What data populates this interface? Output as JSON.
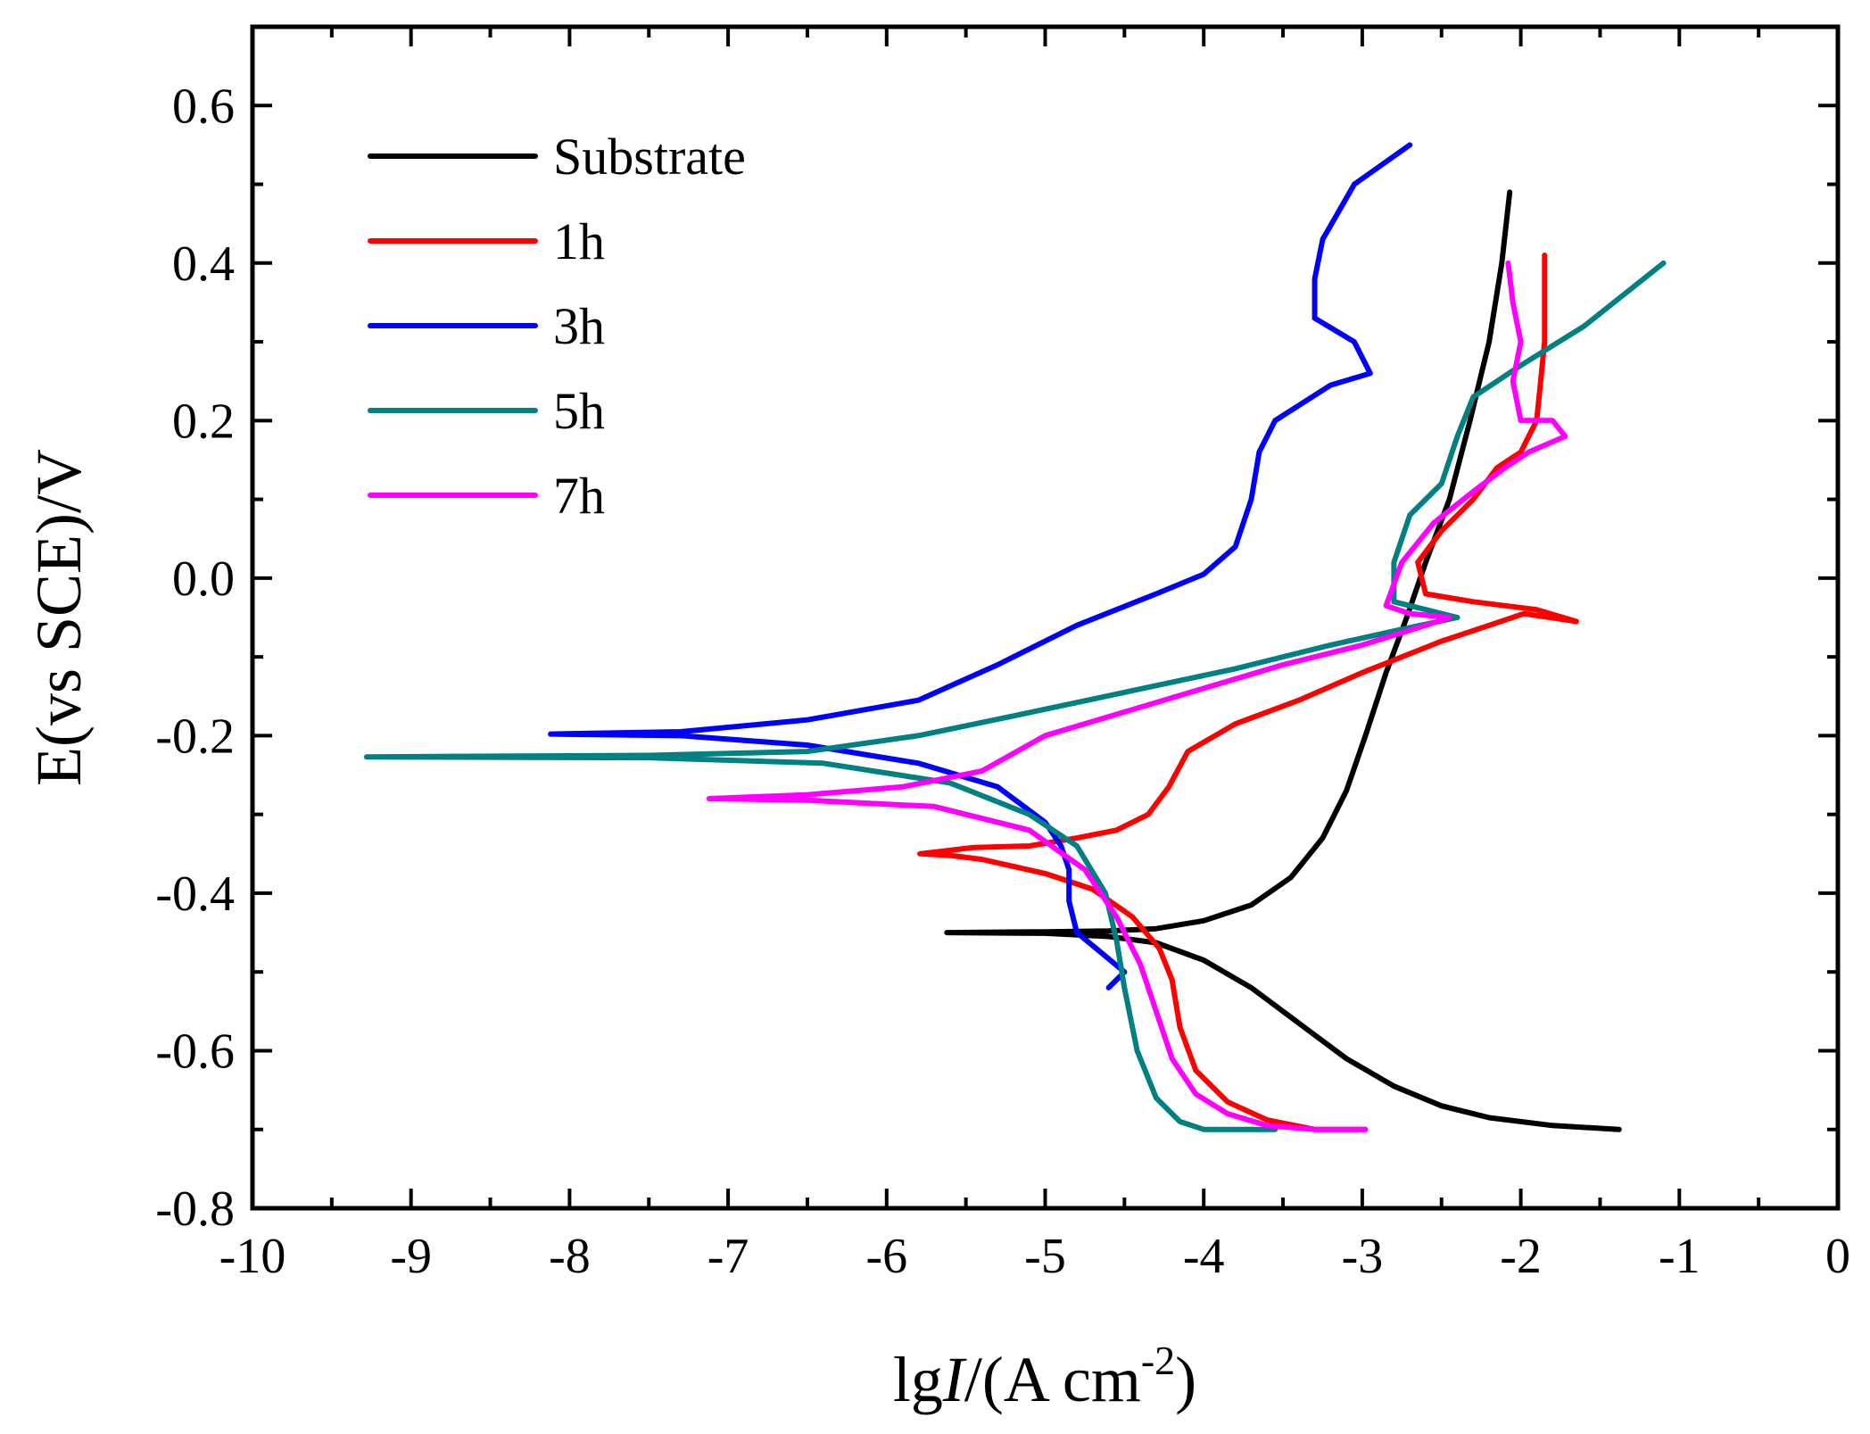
{
  "chart_data": {
    "type": "line",
    "title": "",
    "xlabel": "lgI/(A cm-2)",
    "ylabel": "E(vs SCE)/V",
    "xlabel_parts": {
      "prefix": "lg",
      "italic": "I",
      "mid": "/(A cm",
      "sup": "-2",
      "suffix": ")"
    },
    "xlim": [
      -10,
      0
    ],
    "ylim": [
      -0.8,
      0.7
    ],
    "xticks": [
      -10,
      -9,
      -8,
      -7,
      -6,
      -5,
      -4,
      -3,
      -2,
      -1,
      0
    ],
    "xtick_labels": [
      "-10",
      "-9",
      "-8",
      "-7",
      "-6",
      "-5",
      "-4",
      "-3",
      "-2",
      "-1",
      "0"
    ],
    "yticks": [
      -0.8,
      -0.6,
      -0.4,
      -0.2,
      0.0,
      0.2,
      0.4,
      0.6
    ],
    "ytick_labels": [
      "-0.8",
      "-0.6",
      "-0.4",
      "-0.2",
      "0.0",
      "0.2",
      "0.4",
      "0.6"
    ],
    "grid": false,
    "legend_position": "top-left",
    "series": [
      {
        "name": "Substrate",
        "color": "#000000",
        "points": [
          [
            -1.38,
            -0.7
          ],
          [
            -1.8,
            -0.695
          ],
          [
            -2.2,
            -0.685
          ],
          [
            -2.5,
            -0.67
          ],
          [
            -2.8,
            -0.645
          ],
          [
            -3.1,
            -0.61
          ],
          [
            -3.4,
            -0.565
          ],
          [
            -3.7,
            -0.52
          ],
          [
            -4.0,
            -0.485
          ],
          [
            -4.3,
            -0.463
          ],
          [
            -4.6,
            -0.455
          ],
          [
            -5.0,
            -0.451
          ],
          [
            -5.62,
            -0.45
          ],
          [
            -5.0,
            -0.449
          ],
          [
            -4.6,
            -0.448
          ],
          [
            -4.3,
            -0.445
          ],
          [
            -4.0,
            -0.435
          ],
          [
            -3.7,
            -0.415
          ],
          [
            -3.45,
            -0.38
          ],
          [
            -3.25,
            -0.33
          ],
          [
            -3.1,
            -0.27
          ],
          [
            -2.98,
            -0.2
          ],
          [
            -2.85,
            -0.12
          ],
          [
            -2.72,
            -0.05
          ],
          [
            -2.6,
            0.02
          ],
          [
            -2.45,
            0.1
          ],
          [
            -2.32,
            0.2
          ],
          [
            -2.2,
            0.3
          ],
          [
            -2.12,
            0.4
          ],
          [
            -2.07,
            0.49
          ]
        ]
      },
      {
        "name": "1h",
        "color": "#ff0000",
        "points": [
          [
            -2.98,
            -0.7
          ],
          [
            -3.3,
            -0.7
          ],
          [
            -3.6,
            -0.688
          ],
          [
            -3.85,
            -0.665
          ],
          [
            -4.05,
            -0.625
          ],
          [
            -4.15,
            -0.57
          ],
          [
            -4.2,
            -0.51
          ],
          [
            -4.28,
            -0.47
          ],
          [
            -4.45,
            -0.43
          ],
          [
            -4.7,
            -0.395
          ],
          [
            -5.0,
            -0.375
          ],
          [
            -5.4,
            -0.357
          ],
          [
            -5.6,
            -0.352
          ],
          [
            -5.79,
            -0.35
          ],
          [
            -5.45,
            -0.342
          ],
          [
            -5.1,
            -0.34
          ],
          [
            -4.8,
            -0.33
          ],
          [
            -4.55,
            -0.32
          ],
          [
            -4.35,
            -0.3
          ],
          [
            -4.22,
            -0.265
          ],
          [
            -4.1,
            -0.22
          ],
          [
            -3.8,
            -0.185
          ],
          [
            -3.4,
            -0.155
          ],
          [
            -3.0,
            -0.12
          ],
          [
            -2.5,
            -0.08
          ],
          [
            -2.2,
            -0.06
          ],
          [
            -1.98,
            -0.045
          ],
          [
            -1.65,
            -0.055
          ],
          [
            -1.9,
            -0.04
          ],
          [
            -2.3,
            -0.03
          ],
          [
            -2.6,
            -0.02
          ],
          [
            -2.65,
            0.02
          ],
          [
            -2.5,
            0.06
          ],
          [
            -2.3,
            0.1
          ],
          [
            -2.15,
            0.14
          ],
          [
            -2.0,
            0.16
          ],
          [
            -1.9,
            0.2
          ],
          [
            -1.85,
            0.3
          ],
          [
            -1.85,
            0.41
          ]
        ]
      },
      {
        "name": "3h",
        "color": "#0000ff",
        "points": [
          [
            -4.6,
            -0.52
          ],
          [
            -4.5,
            -0.5
          ],
          [
            -4.65,
            -0.475
          ],
          [
            -4.8,
            -0.45
          ],
          [
            -4.85,
            -0.41
          ],
          [
            -4.85,
            -0.37
          ],
          [
            -4.9,
            -0.34
          ],
          [
            -5.0,
            -0.31
          ],
          [
            -5.3,
            -0.265
          ],
          [
            -5.8,
            -0.235
          ],
          [
            -6.5,
            -0.212
          ],
          [
            -7.3,
            -0.2
          ],
          [
            -8.12,
            -0.198
          ],
          [
            -7.3,
            -0.195
          ],
          [
            -6.5,
            -0.18
          ],
          [
            -5.8,
            -0.155
          ],
          [
            -5.3,
            -0.11
          ],
          [
            -4.8,
            -0.06
          ],
          [
            -4.3,
            -0.02
          ],
          [
            -4.0,
            0.005
          ],
          [
            -3.8,
            0.04
          ],
          [
            -3.7,
            0.1
          ],
          [
            -3.65,
            0.16
          ],
          [
            -3.55,
            0.2
          ],
          [
            -3.2,
            0.245
          ],
          [
            -2.95,
            0.26
          ],
          [
            -3.05,
            0.3
          ],
          [
            -3.3,
            0.33
          ],
          [
            -3.3,
            0.38
          ],
          [
            -3.25,
            0.43
          ],
          [
            -3.05,
            0.5
          ],
          [
            -2.7,
            0.55
          ]
        ]
      },
      {
        "name": "5h",
        "color": "#008080",
        "points": [
          [
            -3.55,
            -0.7
          ],
          [
            -4.0,
            -0.7
          ],
          [
            -4.15,
            -0.69
          ],
          [
            -4.3,
            -0.66
          ],
          [
            -4.42,
            -0.6
          ],
          [
            -4.5,
            -0.52
          ],
          [
            -4.55,
            -0.46
          ],
          [
            -4.62,
            -0.4
          ],
          [
            -4.8,
            -0.34
          ],
          [
            -5.1,
            -0.3
          ],
          [
            -5.6,
            -0.26
          ],
          [
            -6.4,
            -0.235
          ],
          [
            -7.5,
            -0.228
          ],
          [
            -9.28,
            -0.227
          ],
          [
            -7.5,
            -0.225
          ],
          [
            -6.5,
            -0.22
          ],
          [
            -5.8,
            -0.2
          ],
          [
            -5.2,
            -0.175
          ],
          [
            -4.5,
            -0.145
          ],
          [
            -3.8,
            -0.115
          ],
          [
            -3.2,
            -0.085
          ],
          [
            -2.75,
            -0.065
          ],
          [
            -2.4,
            -0.05
          ],
          [
            -2.6,
            -0.04
          ],
          [
            -2.8,
            -0.03
          ],
          [
            -2.8,
            0.02
          ],
          [
            -2.7,
            0.08
          ],
          [
            -2.5,
            0.12
          ],
          [
            -2.4,
            0.18
          ],
          [
            -2.3,
            0.23
          ],
          [
            -2.0,
            0.27
          ],
          [
            -1.6,
            0.32
          ],
          [
            -1.1,
            0.4
          ]
        ]
      },
      {
        "name": "7h",
        "color": "#ff00ff",
        "points": [
          [
            -2.98,
            -0.7
          ],
          [
            -3.3,
            -0.7
          ],
          [
            -3.6,
            -0.695
          ],
          [
            -3.85,
            -0.68
          ],
          [
            -4.05,
            -0.655
          ],
          [
            -4.2,
            -0.61
          ],
          [
            -4.3,
            -0.55
          ],
          [
            -4.4,
            -0.49
          ],
          [
            -4.55,
            -0.43
          ],
          [
            -4.75,
            -0.37
          ],
          [
            -5.1,
            -0.32
          ],
          [
            -5.7,
            -0.29
          ],
          [
            -6.5,
            -0.282
          ],
          [
            -7.12,
            -0.28
          ],
          [
            -6.5,
            -0.275
          ],
          [
            -5.9,
            -0.265
          ],
          [
            -5.4,
            -0.245
          ],
          [
            -5.0,
            -0.2
          ],
          [
            -4.5,
            -0.17
          ],
          [
            -4.0,
            -0.14
          ],
          [
            -3.5,
            -0.11
          ],
          [
            -3.0,
            -0.085
          ],
          [
            -2.6,
            -0.06
          ],
          [
            -2.45,
            -0.05
          ],
          [
            -2.7,
            -0.045
          ],
          [
            -2.85,
            -0.035
          ],
          [
            -2.75,
            0.02
          ],
          [
            -2.55,
            0.07
          ],
          [
            -2.3,
            0.11
          ],
          [
            -2.1,
            0.14
          ],
          [
            -1.95,
            0.16
          ],
          [
            -1.72,
            0.18
          ],
          [
            -1.8,
            0.2
          ],
          [
            -2.0,
            0.2
          ],
          [
            -2.05,
            0.25
          ],
          [
            -2.0,
            0.3
          ],
          [
            -2.05,
            0.35
          ],
          [
            -2.08,
            0.4
          ]
        ]
      }
    ]
  }
}
